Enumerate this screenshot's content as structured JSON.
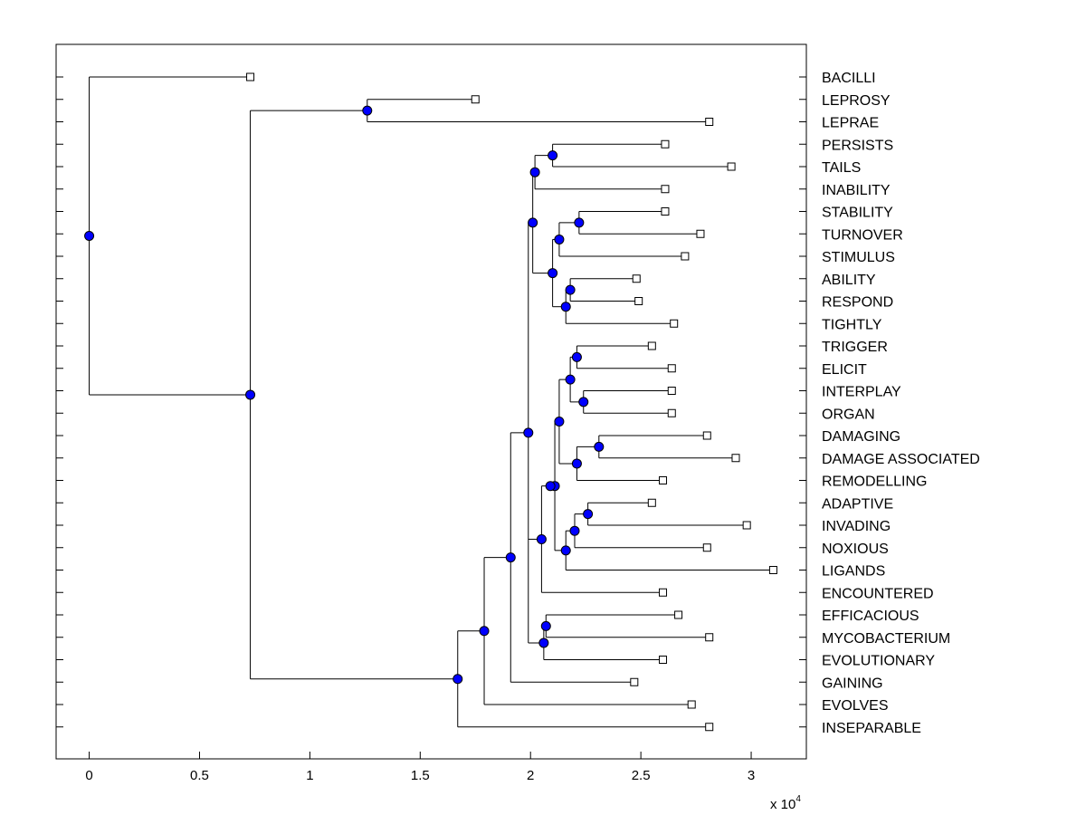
{
  "chart_data": {
    "type": "dendrogram",
    "title": "",
    "xlabel": "",
    "ylabel": "",
    "xlim": [
      -0.15,
      3.25
    ],
    "x_ticks": [
      {
        "value": 0,
        "label": "0"
      },
      {
        "value": 0.5,
        "label": "0.5"
      },
      {
        "value": 1,
        "label": "1"
      },
      {
        "value": 1.5,
        "label": "1.5"
      },
      {
        "value": 2,
        "label": "2"
      },
      {
        "value": 2.5,
        "label": "2.5"
      },
      {
        "value": 3,
        "label": "3"
      }
    ],
    "x_multiplier": {
      "prefix": "x 10",
      "exponent": "4"
    },
    "leaves": [
      {
        "label": "BACILLI",
        "x": 0.73
      },
      {
        "label": "LEPROSY",
        "x": 1.75
      },
      {
        "label": "LEPRAE",
        "x": 2.81
      },
      {
        "label": "PERSISTS",
        "x": 2.61
      },
      {
        "label": "TAILS",
        "x": 2.91
      },
      {
        "label": "INABILITY",
        "x": 2.61
      },
      {
        "label": "STABILITY",
        "x": 2.61
      },
      {
        "label": "TURNOVER",
        "x": 2.77
      },
      {
        "label": "STIMULUS",
        "x": 2.7
      },
      {
        "label": "ABILITY",
        "x": 2.48
      },
      {
        "label": "RESPOND",
        "x": 2.49
      },
      {
        "label": "TIGHTLY",
        "x": 2.65
      },
      {
        "label": "TRIGGER",
        "x": 2.55
      },
      {
        "label": "ELICIT",
        "x": 2.64
      },
      {
        "label": "INTERPLAY",
        "x": 2.64
      },
      {
        "label": "ORGAN",
        "x": 2.64
      },
      {
        "label": "DAMAGING",
        "x": 2.8
      },
      {
        "label": "DAMAGE ASSOCIATED",
        "x": 2.93
      },
      {
        "label": "REMODELLING",
        "x": 2.6
      },
      {
        "label": "ADAPTIVE",
        "x": 2.55
      },
      {
        "label": "INVADING",
        "x": 2.98
      },
      {
        "label": "NOXIOUS",
        "x": 2.8
      },
      {
        "label": "LIGANDS",
        "x": 3.1
      },
      {
        "label": "ENCOUNTERED",
        "x": 2.6
      },
      {
        "label": "EFFICACIOUS",
        "x": 2.67
      },
      {
        "label": "MYCOBACTERIUM",
        "x": 2.81
      },
      {
        "label": "EVOLUTIONARY",
        "x": 2.6
      },
      {
        "label": "GAINING",
        "x": 2.47
      },
      {
        "label": "EVOLVES",
        "x": 2.73
      },
      {
        "label": "INSEPARABLE",
        "x": 2.81
      }
    ],
    "nodes": [
      {
        "id": "n1",
        "x": 1.26,
        "children": [
          1,
          2
        ]
      },
      {
        "id": "n2",
        "x": 2.1,
        "children": [
          3,
          4
        ]
      },
      {
        "id": "n3",
        "x": 2.02,
        "children": [
          "n2",
          5
        ]
      },
      {
        "id": "n4",
        "x": 2.22,
        "children": [
          6,
          7
        ]
      },
      {
        "id": "n5",
        "x": 2.13,
        "children": [
          "n4",
          8
        ]
      },
      {
        "id": "n6",
        "x": 2.18,
        "children": [
          9,
          10
        ]
      },
      {
        "id": "n7",
        "x": 2.16,
        "children": [
          "n6",
          11
        ]
      },
      {
        "id": "n8",
        "x": 2.1,
        "children": [
          "n5",
          "n7"
        ]
      },
      {
        "id": "n9",
        "x": 2.01,
        "children": [
          "n3",
          "n8"
        ]
      },
      {
        "id": "n10",
        "x": 2.21,
        "children": [
          12,
          13
        ]
      },
      {
        "id": "n11",
        "x": 2.24,
        "children": [
          14,
          15
        ]
      },
      {
        "id": "n12",
        "x": 2.18,
        "children": [
          "n10",
          "n11"
        ]
      },
      {
        "id": "n13",
        "x": 2.31,
        "children": [
          16,
          17
        ]
      },
      {
        "id": "n14",
        "x": 2.21,
        "children": [
          "n13",
          18
        ]
      },
      {
        "id": "n15",
        "x": 2.13,
        "children": [
          "n12",
          "n14"
        ]
      },
      {
        "id": "n16",
        "x": 2.26,
        "children": [
          19,
          20
        ]
      },
      {
        "id": "n17",
        "x": 2.2,
        "children": [
          "n16",
          21
        ]
      },
      {
        "id": "n18",
        "x": 2.16,
        "children": [
          "n17",
          22
        ]
      },
      {
        "id": "n19",
        "x": 2.11,
        "children": [
          "n15",
          "n18"
        ]
      },
      {
        "id": "n20",
        "x": 2.09,
        "children": [
          "n19"
        ]
      },
      {
        "id": "n21",
        "x": 2.05,
        "children": [
          "n20",
          23
        ]
      },
      {
        "id": "n22",
        "x": 2.07,
        "children": [
          24,
          25
        ]
      },
      {
        "id": "n23",
        "x": 2.06,
        "children": [
          "n22",
          26
        ]
      },
      {
        "id": "n24",
        "x": 1.99,
        "children": [
          "n9",
          "n21",
          "n23"
        ]
      },
      {
        "id": "n25",
        "x": 1.91,
        "children": [
          "n24",
          27
        ]
      },
      {
        "id": "n26",
        "x": 1.79,
        "children": [
          "n25",
          28
        ]
      },
      {
        "id": "n27",
        "x": 1.67,
        "children": [
          "n26",
          29
        ]
      },
      {
        "id": "n28",
        "x": 0.73,
        "children": [
          "n1",
          "n27"
        ]
      },
      {
        "id": "root",
        "x": 0.0,
        "children": [
          0,
          "n28"
        ]
      }
    ]
  }
}
